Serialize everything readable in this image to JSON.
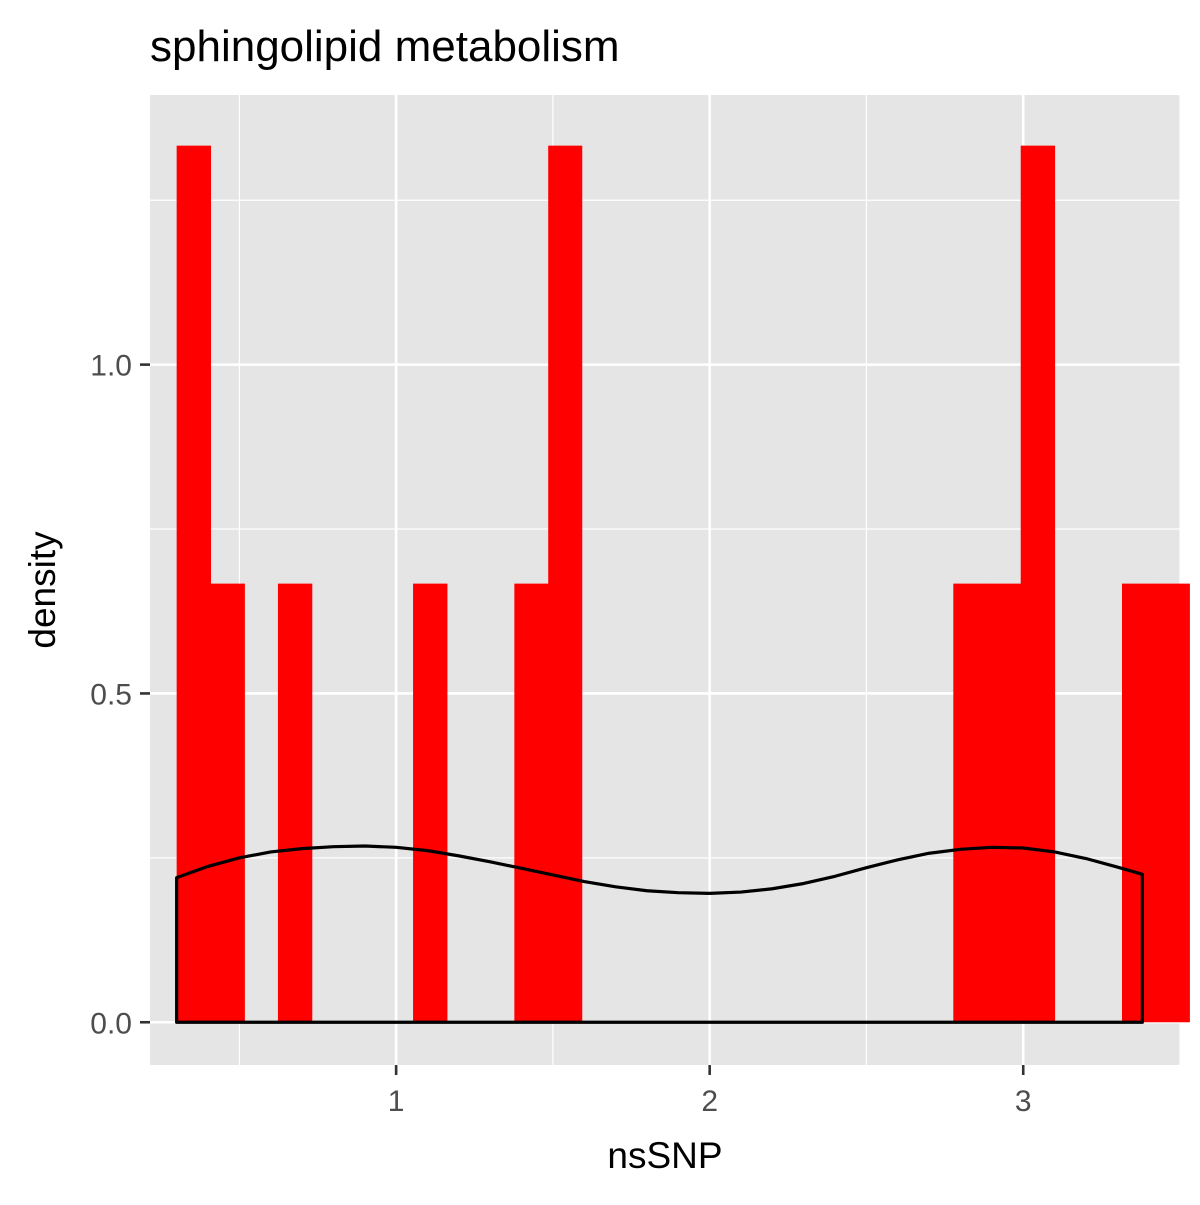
{
  "chart_data": {
    "type": "bar",
    "title": "sphingolipid metabolism",
    "xlabel": "nsSNP",
    "ylabel": "density",
    "xlim": [
      0.215,
      3.5
    ],
    "ylim": [
      -0.065,
      1.41
    ],
    "x_ticks": [
      1,
      2,
      3
    ],
    "y_ticks": [
      0.0,
      0.5,
      1.0
    ],
    "x_tick_labels": [
      "1",
      "2",
      "3"
    ],
    "y_tick_labels": [
      "0.0",
      "0.5",
      "1.0"
    ],
    "x_minor_gridlines": [
      0.5,
      1.5,
      2.5,
      3.5
    ],
    "y_minor_gridlines": [
      0.25,
      0.75,
      1.25
    ],
    "grid": true,
    "background": "#e5e5e5",
    "series": [
      {
        "kind": "histogram",
        "fill": "#ff0000",
        "bins": [
          {
            "x0": 0.3,
            "x1": 0.408,
            "density": 1.333
          },
          {
            "x0": 0.408,
            "x1": 0.516,
            "density": 0.667
          },
          {
            "x0": 0.623,
            "x1": 0.731,
            "density": 0.667
          },
          {
            "x0": 1.054,
            "x1": 1.162,
            "density": 0.667
          },
          {
            "x0": 1.377,
            "x1": 1.485,
            "density": 0.667
          },
          {
            "x0": 1.485,
            "x1": 1.592,
            "density": 1.333
          },
          {
            "x0": 2.777,
            "x1": 2.885,
            "density": 0.667
          },
          {
            "x0": 2.885,
            "x1": 2.992,
            "density": 0.667
          },
          {
            "x0": 2.992,
            "x1": 3.1,
            "density": 1.333
          },
          {
            "x0": 3.315,
            "x1": 3.423,
            "density": 0.667
          },
          {
            "x0": 3.423,
            "x1": 3.53,
            "density": 0.667
          }
        ]
      },
      {
        "kind": "density",
        "stroke": "#000000",
        "points": [
          [
            0.3,
            0.22
          ],
          [
            0.4,
            0.237
          ],
          [
            0.5,
            0.25
          ],
          [
            0.6,
            0.259
          ],
          [
            0.7,
            0.264
          ],
          [
            0.8,
            0.267
          ],
          [
            0.9,
            0.268
          ],
          [
            1.0,
            0.266
          ],
          [
            1.1,
            0.261
          ],
          [
            1.2,
            0.253
          ],
          [
            1.3,
            0.244
          ],
          [
            1.4,
            0.234
          ],
          [
            1.5,
            0.224
          ],
          [
            1.6,
            0.214
          ],
          [
            1.7,
            0.206
          ],
          [
            1.8,
            0.2
          ],
          [
            1.9,
            0.197
          ],
          [
            2.0,
            0.196
          ],
          [
            2.1,
            0.198
          ],
          [
            2.2,
            0.203
          ],
          [
            2.3,
            0.211
          ],
          [
            2.4,
            0.222
          ],
          [
            2.5,
            0.235
          ],
          [
            2.6,
            0.247
          ],
          [
            2.7,
            0.257
          ],
          [
            2.8,
            0.263
          ],
          [
            2.9,
            0.266
          ],
          [
            3.0,
            0.265
          ],
          [
            3.1,
            0.259
          ],
          [
            3.2,
            0.249
          ],
          [
            3.3,
            0.236
          ],
          [
            3.38,
            0.225
          ]
        ]
      }
    ]
  }
}
